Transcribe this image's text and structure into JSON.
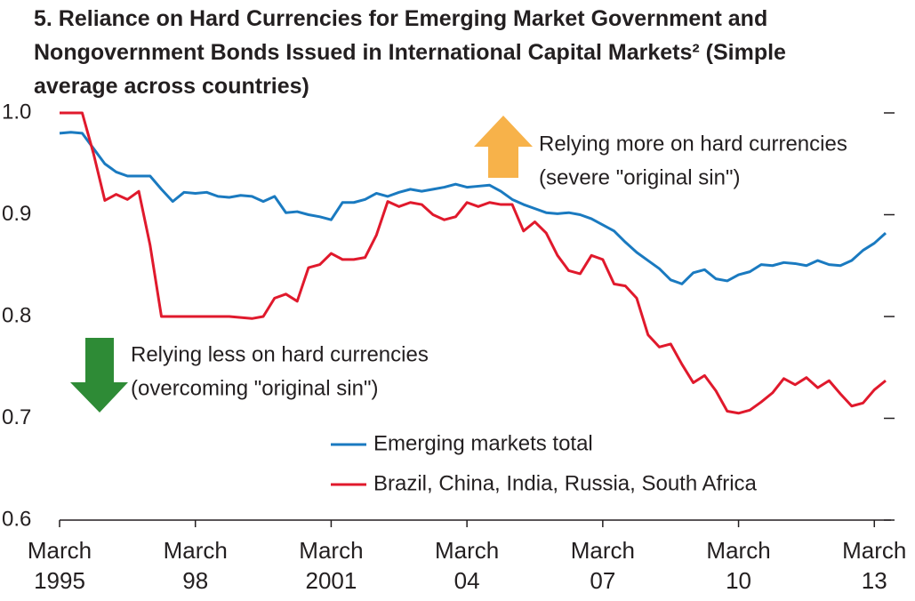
{
  "chart_data": {
    "type": "line",
    "title": "5. Reliance on Hard Currencies for Emerging Market Government and Nongovernment Bonds Issued in International Capital Markets² (Simple average across countries)",
    "categories": [
      "March 1995",
      null,
      null,
      null,
      null,
      null,
      null,
      null,
      null,
      null,
      null,
      null,
      "March 98",
      null,
      null,
      null,
      null,
      null,
      null,
      null,
      null,
      null,
      null,
      null,
      "March 2001",
      null,
      null,
      null,
      null,
      null,
      null,
      null,
      null,
      null,
      null,
      null,
      "March 04",
      null,
      null,
      null,
      null,
      null,
      null,
      null,
      null,
      null,
      null,
      null,
      "March 07",
      null,
      null,
      null,
      null,
      null,
      null,
      null,
      null,
      null,
      null,
      null,
      "March 10",
      null,
      null,
      null,
      null,
      null,
      null,
      null,
      null,
      null,
      null,
      null,
      "March 13",
      null
    ],
    "series": [
      {
        "name": "Emerging markets total",
        "color": "#1a7ac0",
        "values": [
          0.98,
          0.981,
          0.98,
          0.965,
          0.95,
          0.942,
          0.938,
          0.938,
          0.938,
          0.925,
          0.913,
          0.922,
          0.921,
          0.922,
          0.918,
          0.917,
          0.919,
          0.918,
          0.913,
          0.918,
          0.902,
          0.903,
          0.9,
          0.898,
          0.895,
          0.912,
          0.912,
          0.915,
          0.921,
          0.918,
          0.922,
          0.925,
          0.923,
          0.925,
          0.927,
          0.93,
          0.927,
          0.928,
          0.929,
          0.923,
          0.915,
          0.91,
          0.906,
          0.902,
          0.901,
          0.902,
          0.9,
          0.896,
          0.89,
          0.884,
          0.873,
          0.863,
          0.855,
          0.847,
          0.836,
          0.832,
          0.843,
          0.846,
          0.837,
          0.835,
          0.841,
          0.844,
          0.851,
          0.85,
          0.853,
          0.852,
          0.85,
          0.855,
          0.851,
          0.85,
          0.855,
          0.865,
          0.872,
          0.882
        ]
      },
      {
        "name": "Brazil, China, India, Russia, South Africa",
        "color": "#e0192c",
        "values": [
          1.0,
          1.0,
          1.0,
          0.96,
          0.914,
          0.92,
          0.915,
          0.923,
          0.87,
          0.8,
          0.8,
          0.8,
          0.8,
          0.8,
          0.8,
          0.8,
          0.799,
          0.798,
          0.8,
          0.818,
          0.822,
          0.815,
          0.848,
          0.851,
          0.862,
          0.856,
          0.856,
          0.858,
          0.88,
          0.913,
          0.908,
          0.912,
          0.91,
          0.9,
          0.895,
          0.898,
          0.912,
          0.908,
          0.912,
          0.91,
          0.91,
          0.884,
          0.893,
          0.882,
          0.86,
          0.845,
          0.842,
          0.86,
          0.856,
          0.832,
          0.83,
          0.818,
          0.782,
          0.77,
          0.773,
          0.753,
          0.735,
          0.742,
          0.727,
          0.707,
          0.705,
          0.708,
          0.716,
          0.725,
          0.739,
          0.733,
          0.74,
          0.73,
          0.737,
          0.724,
          0.712,
          0.715,
          0.728,
          0.737
        ]
      }
    ],
    "ylim": [
      0.6,
      1.0
    ],
    "yticks": [
      0.6,
      0.7,
      0.8,
      0.9,
      {
        "value": 1.0,
        "label": "1.0"
      }
    ],
    "annotations": [
      {
        "lines": [
          "Relying more on hard currencies",
          "(severe \"original sin\")"
        ]
      },
      {
        "lines": [
          "Relying less on hard currencies",
          "(overcoming \"original sin\")"
        ]
      }
    ]
  }
}
